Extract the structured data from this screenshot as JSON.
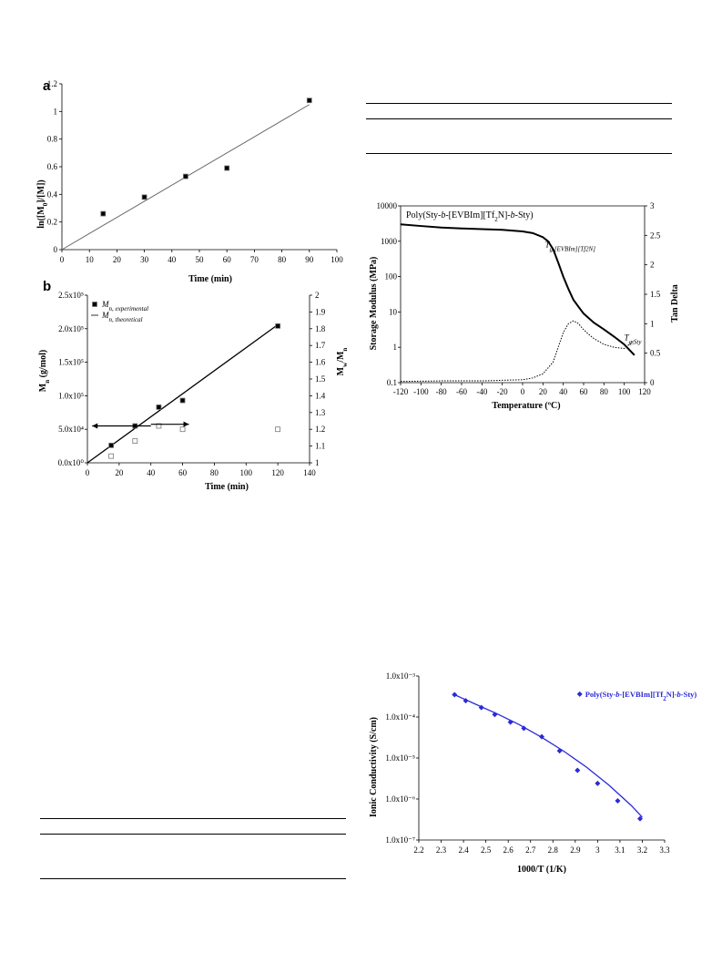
{
  "panels": {
    "a": "a",
    "b": "b"
  },
  "chart_data": [
    {
      "id": "chart-a",
      "type": "scatter",
      "ylabel": "ln([M0]/[M])",
      "xlabel": "Time (min)",
      "xlim": [
        0,
        100
      ],
      "ylim": [
        0,
        1.2
      ],
      "x_ticks": [
        "0",
        "10",
        "20",
        "30",
        "40",
        "50",
        "60",
        "70",
        "80",
        "90",
        "100"
      ],
      "y_ticks": [
        "0",
        "0.2",
        "0.4",
        "0.6",
        "0.8",
        "1",
        "1.2"
      ],
      "grid": false,
      "series": [
        {
          "marker": "filled-square",
          "x": [
            15,
            30,
            45,
            60,
            90
          ],
          "y": [
            0.26,
            0.38,
            0.53,
            0.59,
            1.08
          ]
        }
      ],
      "fit_line": {
        "x": [
          0,
          90
        ],
        "y": [
          0,
          1.05
        ]
      }
    },
    {
      "id": "chart-b",
      "type": "scatter",
      "ylabel": "Mn (g/mol)",
      "y2label": "Mw/Mn",
      "xlabel": "Time (min)",
      "xlim": [
        0,
        140
      ],
      "ylim": [
        0,
        250000
      ],
      "y2lim": [
        1,
        2
      ],
      "x_ticks": [
        "0",
        "20",
        "40",
        "60",
        "80",
        "100",
        "120",
        "140"
      ],
      "y_ticks": [
        "0.0x10⁰",
        "5.0x10⁴",
        "1.0x10⁵",
        "1.5x10⁵",
        "2.0x10⁵",
        "2.5x10⁵"
      ],
      "y2_ticks": [
        "1",
        "1.1",
        "1.2",
        "1.3",
        "1.4",
        "1.5",
        "1.6",
        "1.7",
        "1.8",
        "1.9",
        "2"
      ],
      "legend": {
        "placement": "top-left",
        "experimental": "Mn, experimental",
        "theoretical": "Mn, theoretical"
      },
      "series": [
        {
          "name": "Mn, experimental",
          "marker": "filled-square",
          "axis": "left",
          "x": [
            15,
            30,
            45,
            60,
            120
          ],
          "y": [
            26000,
            55000,
            83000,
            93000,
            204000
          ]
        },
        {
          "name": "Mw/Mn",
          "marker": "open-square",
          "axis": "right",
          "x": [
            15,
            30,
            45,
            60,
            120
          ],
          "y": [
            1.04,
            1.13,
            1.22,
            1.2,
            1.2
          ]
        }
      ],
      "theoretical_line": {
        "x": [
          0,
          120
        ],
        "y": [
          0,
          206000
        ]
      },
      "arrows": [
        {
          "direction": "left",
          "x": [
            40,
            3
          ],
          "y": 55000
        },
        {
          "direction": "right",
          "x": [
            40,
            64
          ],
          "y": 1.23
        }
      ]
    },
    {
      "id": "chart-c",
      "type": "line",
      "title": "Poly(Sty-b-[EVBIm][Tf2N]-b-Sty)",
      "ylabel": "Storage Modulus (MPa)",
      "y2label": "Tan Delta",
      "xlabel": "Temperature (ºC)",
      "xlim": [
        -120,
        120
      ],
      "ylim": [
        0.1,
        10000
      ],
      "y_scale": "log",
      "y2lim": [
        0,
        3
      ],
      "x_ticks": [
        "-120",
        "-100",
        "-80",
        "-60",
        "-40",
        "-20",
        "0",
        "20",
        "40",
        "60",
        "80",
        "100",
        "120"
      ],
      "y_ticks": [
        "0.1",
        "1",
        "10",
        "100",
        "1000",
        "10000"
      ],
      "y2_ticks": [
        "0",
        "0.5",
        "1",
        "1.5",
        "2",
        "2.5",
        "3"
      ],
      "annotations": {
        "tg1": "Tg,[EVBIm][Tf2N]",
        "tg2": "Tg,Sty"
      },
      "series": [
        {
          "name": "Storage Modulus",
          "axis": "left",
          "style": "solid-thick",
          "x": [
            -120,
            -100,
            -80,
            -60,
            -40,
            -20,
            0,
            10,
            20,
            25,
            30,
            35,
            40,
            45,
            50,
            55,
            60,
            70,
            80,
            90,
            100,
            110
          ],
          "y": [
            3000,
            2700,
            2450,
            2300,
            2200,
            2100,
            1900,
            1700,
            1300,
            1000,
            600,
            250,
            100,
            45,
            22,
            14,
            9,
            5,
            3.2,
            2,
            1.2,
            0.6
          ]
        },
        {
          "name": "Tan Delta",
          "axis": "right",
          "style": "dotted",
          "x": [
            -120,
            -80,
            -40,
            -20,
            0,
            10,
            20,
            30,
            35,
            40,
            45,
            50,
            55,
            60,
            65,
            70,
            80,
            90,
            100,
            110
          ],
          "y": [
            0.02,
            0.03,
            0.03,
            0.04,
            0.05,
            0.08,
            0.15,
            0.35,
            0.6,
            0.85,
            1.0,
            1.05,
            1.0,
            0.9,
            0.82,
            0.75,
            0.65,
            0.6,
            0.58,
            0.72
          ]
        }
      ]
    },
    {
      "id": "chart-d",
      "type": "scatter",
      "ylabel": "Ionic Conductivity (S/cm)",
      "xlabel": "1000/T (1/K)",
      "xlim": [
        2.2,
        3.3
      ],
      "ylim": [
        1e-07,
        0.001
      ],
      "y_scale": "log",
      "x_ticks": [
        "2.2",
        "2.3",
        "2.4",
        "2.5",
        "2.6",
        "2.7",
        "2.8",
        "2.9",
        "3",
        "3.1",
        "3.2",
        "3.3"
      ],
      "y_ticks": [
        "1.0x10⁻⁷",
        "1.0x10⁻⁶",
        "1.0x10⁻⁵",
        "1.0x10⁻⁴",
        "1.0x10⁻³"
      ],
      "legend": {
        "placement": "top-right",
        "label": "Poly(Sty-b-[EVBIm][Tf2N]-b-Sty)"
      },
      "series": [
        {
          "name": "Poly(Sty-b-[EVBIm][Tf2N]-b-Sty)",
          "marker": "diamond",
          "color": "#2a2ad8",
          "x": [
            2.36,
            2.41,
            2.48,
            2.54,
            2.61,
            2.67,
            2.75,
            2.83,
            2.91,
            3.0,
            3.09,
            3.19
          ],
          "y": [
            0.00035,
            0.00025,
            0.00017,
            0.000115,
            7.5e-05,
            5.3e-05,
            3.3e-05,
            1.5e-05,
            5e-06,
            2.4e-06,
            9e-07,
            3.3e-07
          ]
        }
      ],
      "fit_curve": {
        "x": [
          2.36,
          2.45,
          2.55,
          2.65,
          2.75,
          2.85,
          2.95,
          3.05,
          3.15,
          3.2
        ],
        "y": [
          0.00035,
          0.00021,
          0.00012,
          6.5e-05,
          3.2e-05,
          1.45e-05,
          6e-06,
          2.2e-06,
          7e-07,
          3.6e-07
        ]
      }
    }
  ],
  "colors": {
    "series_blue": "#2a2ad8",
    "ink": "#000000",
    "open_marker": "#555555"
  }
}
